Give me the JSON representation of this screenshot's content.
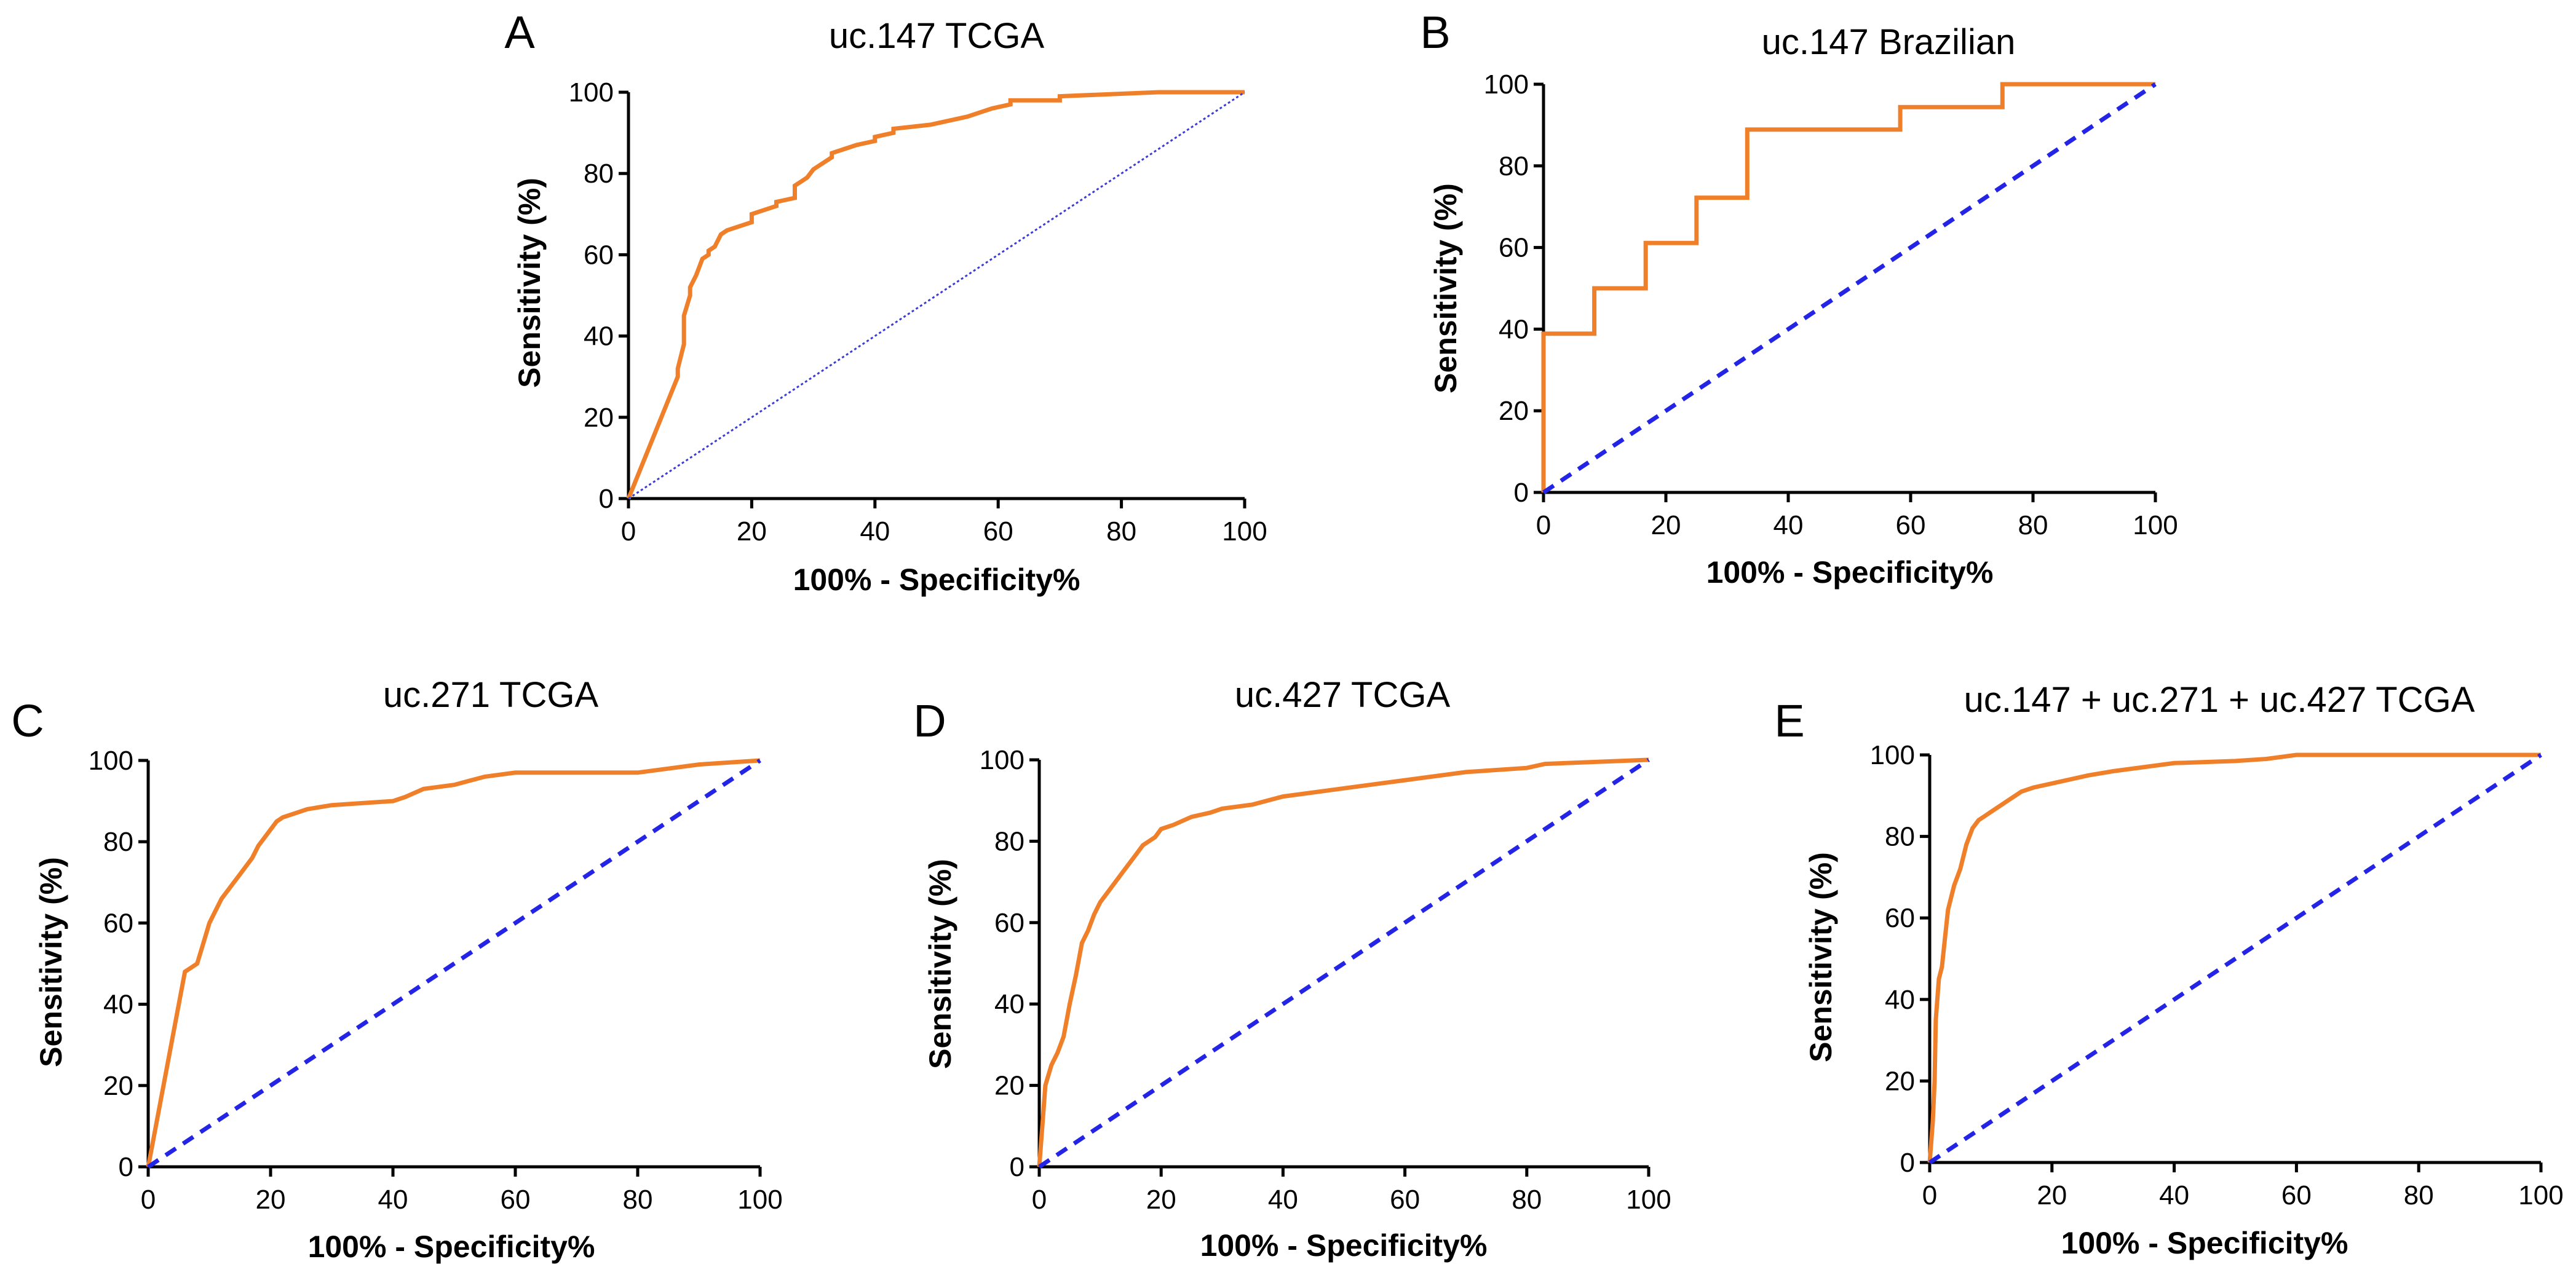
{
  "chart_data": [
    {
      "type": "line",
      "panel": "A",
      "title": "uc.147 TCGA",
      "xlabel": "100% - Specificity%",
      "ylabel": "Sensitivity (%)",
      "xlim": [
        0,
        100
      ],
      "ylim": [
        0,
        100
      ],
      "xticks": [
        "0",
        "20",
        "40",
        "60",
        "80",
        "100"
      ],
      "yticks": [
        "0",
        "20",
        "40",
        "60",
        "80",
        "100"
      ],
      "roc_color": "#f07f2a",
      "ref_color": "#3b3bd6",
      "ref_style": "dotted",
      "series": [
        {
          "name": "ROC curve",
          "x": [
            0,
            8,
            8,
            9,
            9,
            10,
            10,
            11,
            12,
            13,
            13,
            14,
            15,
            16,
            18,
            20,
            20,
            22,
            24,
            24,
            27,
            27,
            28,
            29,
            30,
            31,
            33,
            33,
            35,
            37,
            40,
            40,
            43,
            43,
            49,
            52,
            55,
            57,
            59,
            62,
            62,
            64,
            70,
            70,
            86,
            100
          ],
          "y": [
            0,
            30,
            32,
            38,
            45,
            50,
            52,
            55,
            59,
            60,
            61,
            62,
            65,
            66,
            67,
            68,
            70,
            71,
            72,
            73,
            74,
            77,
            78,
            79,
            81,
            82,
            84,
            85,
            86,
            87,
            88,
            89,
            90,
            91,
            92,
            93,
            94,
            95,
            96,
            97,
            98,
            98,
            98,
            99,
            100,
            100
          ]
        },
        {
          "name": "Reference line",
          "x": [
            0,
            100
          ],
          "y": [
            0,
            100
          ]
        }
      ]
    },
    {
      "type": "line",
      "panel": "B",
      "title": "uc.147 Brazilian",
      "xlabel": "100% - Specificity%",
      "ylabel": "Sensitivity (%)",
      "xlim": [
        0,
        100
      ],
      "ylim": [
        0,
        100
      ],
      "xticks": [
        "0",
        "20",
        "40",
        "60",
        "80",
        "100"
      ],
      "yticks": [
        "0",
        "20",
        "40",
        "60",
        "80",
        "100"
      ],
      "roc_color": "#f07f2a",
      "ref_color": "#2424e6",
      "ref_style": "dashed",
      "series": [
        {
          "name": "ROC curve",
          "x": [
            0,
            0,
            8.3,
            8.3,
            16.7,
            16.7,
            25,
            25,
            33.3,
            33.3,
            58.3,
            58.3,
            75,
            75,
            100
          ],
          "y": [
            0,
            38.9,
            38.9,
            50,
            50,
            61.1,
            61.1,
            72.2,
            72.2,
            88.9,
            88.9,
            94.4,
            94.4,
            100,
            100
          ]
        },
        {
          "name": "Reference line",
          "x": [
            0,
            100
          ],
          "y": [
            0,
            100
          ]
        }
      ]
    },
    {
      "type": "line",
      "panel": "C",
      "title": "uc.271 TCGA",
      "xlabel": "100% - Specificity%",
      "ylabel": "Sensitivity (%)",
      "xlim": [
        0,
        100
      ],
      "ylim": [
        0,
        100
      ],
      "xticks": [
        "0",
        "20",
        "40",
        "60",
        "80",
        "100"
      ],
      "yticks": [
        "0",
        "20",
        "40",
        "60",
        "80",
        "100"
      ],
      "roc_color": "#f07f2a",
      "ref_color": "#2424e6",
      "ref_style": "dashed",
      "series": [
        {
          "name": "ROC curve",
          "x": [
            0,
            6,
            8,
            9,
            10,
            11,
            12,
            13,
            14,
            15,
            16,
            17,
            18,
            19,
            20,
            21,
            22,
            24,
            26,
            28,
            30,
            35,
            40,
            42,
            45,
            50,
            55,
            60,
            65,
            70,
            80,
            85,
            90,
            100
          ],
          "y": [
            0,
            48,
            50,
            55,
            60,
            63,
            66,
            68,
            70,
            72,
            74,
            76,
            79,
            81,
            83,
            85,
            86,
            87,
            88,
            88.5,
            89,
            89.5,
            90,
            91,
            93,
            94,
            96,
            97,
            97,
            97,
            97,
            98,
            99,
            100
          ]
        },
        {
          "name": "Reference line",
          "x": [
            0,
            100
          ],
          "y": [
            0,
            100
          ]
        }
      ]
    },
    {
      "type": "line",
      "panel": "D",
      "title": "uc.427 TCGA",
      "xlabel": "100% - Specificity%",
      "ylabel": "Sensitivity (%)",
      "xlim": [
        0,
        100
      ],
      "ylim": [
        0,
        100
      ],
      "xticks": [
        "0",
        "20",
        "40",
        "60",
        "80",
        "100"
      ],
      "yticks": [
        "0",
        "20",
        "40",
        "60",
        "80",
        "100"
      ],
      "roc_color": "#f07f2a",
      "ref_color": "#2424e6",
      "ref_style": "dashed",
      "series": [
        {
          "name": "ROC curve",
          "x": [
            0,
            0.5,
            1,
            2,
            3,
            4,
            5,
            6,
            7,
            8,
            9,
            10,
            11,
            12,
            13,
            14,
            15,
            16,
            17,
            18,
            19,
            20,
            22,
            25,
            28,
            30,
            35,
            40,
            45,
            50,
            55,
            60,
            65,
            70,
            80,
            83,
            100
          ],
          "y": [
            0,
            10,
            20,
            25,
            28,
            32,
            40,
            47,
            55,
            58,
            62,
            65,
            67,
            69,
            71,
            73,
            75,
            77,
            79,
            80,
            81,
            83,
            84,
            86,
            87,
            88,
            89,
            91,
            92,
            93,
            94,
            95,
            96,
            97,
            98,
            99,
            100
          ]
        },
        {
          "name": "Reference line",
          "x": [
            0,
            100
          ],
          "y": [
            0,
            100
          ]
        }
      ]
    },
    {
      "type": "line",
      "panel": "E",
      "title": "uc.147 + uc.271 + uc.427 TCGA",
      "xlabel": "100% - Specificity%",
      "ylabel": "Sensitivity (%)",
      "xlim": [
        0,
        100
      ],
      "ylim": [
        0,
        100
      ],
      "xticks": [
        "0",
        "20",
        "40",
        "60",
        "80",
        "100"
      ],
      "yticks": [
        "0",
        "20",
        "40",
        "60",
        "80",
        "100"
      ],
      "roc_color": "#f07f2a",
      "ref_color": "#2424e6",
      "ref_style": "dashed",
      "series": [
        {
          "name": "ROC curve",
          "x": [
            0,
            0.5,
            0.8,
            1,
            1.5,
            2,
            2.5,
            3,
            3.5,
            4,
            5,
            6,
            7,
            8,
            9,
            10,
            11,
            12,
            13,
            14,
            15,
            17,
            20,
            23,
            26,
            30,
            35,
            40,
            50,
            55,
            60,
            70,
            100
          ],
          "y": [
            0,
            10,
            20,
            35,
            45,
            48,
            55,
            62,
            65,
            68,
            72,
            78,
            82,
            84,
            85,
            86,
            87,
            88,
            89,
            90,
            91,
            92,
            93,
            94,
            95,
            96,
            97,
            98,
            98.5,
            99,
            100,
            100,
            100
          ]
        },
        {
          "name": "Reference line",
          "x": [
            0,
            100
          ],
          "y": [
            0,
            100
          ]
        }
      ]
    }
  ]
}
